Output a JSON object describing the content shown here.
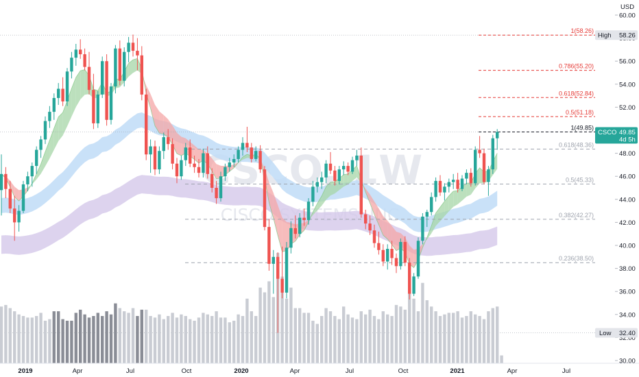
{
  "chart_data": {
    "type": "candlestick",
    "symbol": "CSCO",
    "interval": "1W",
    "watermark": {
      "symbol": "CSCO, 1W",
      "name": "CISCO SYSTEMS, INC"
    },
    "currency": "USD",
    "price_axis": {
      "ylim": [
        29.8,
        61.4
      ],
      "ticks": [
        30.0,
        32.0,
        34.0,
        36.0,
        38.0,
        40.0,
        42.0,
        44.0,
        46.0,
        48.0,
        50.0,
        52.0,
        54.0,
        56.0,
        58.0,
        60.0
      ]
    },
    "time_axis": {
      "labels": [
        "2019",
        "Apr",
        "Jul",
        "Oct",
        "2020",
        "Apr",
        "Jul",
        "Oct",
        "2021",
        "Apr",
        "Jul"
      ],
      "bold": [
        "2019",
        "2020",
        "2021"
      ]
    },
    "price_labels": {
      "last": {
        "symbol": "CSCO",
        "value": "49.85",
        "countdown": "4d 5h"
      },
      "high": {
        "label": "High",
        "value": "58.26"
      },
      "low": {
        "label": "Low",
        "value": "32.40"
      }
    },
    "fibonacci": [
      {
        "label": "1(58.26)",
        "value": 58.26,
        "color": "#e53935"
      },
      {
        "label": "0.786(55.20)",
        "value": 55.2,
        "color": "#e53935"
      },
      {
        "label": "0.618(52.84)",
        "value": 52.84,
        "color": "#e53935"
      },
      {
        "label": "0.5(51.18)",
        "value": 51.18,
        "color": "#e53935"
      },
      {
        "label": "1(49.85)",
        "value": 49.85,
        "color": "#131722"
      },
      {
        "label": "0.618(48.36)",
        "value": 48.36,
        "color": "#9ea3ad"
      },
      {
        "label": "0.5(45.33)",
        "value": 45.33,
        "color": "#9ea3ad"
      },
      {
        "label": "0.382(42.27)",
        "value": 42.27,
        "color": "#9ea3ad"
      },
      {
        "label": "0.236(38.50)",
        "value": 38.5,
        "color": "#9ea3ad"
      }
    ],
    "colors": {
      "up": "#26a69a",
      "down": "#ef5350",
      "vol_dark": "#8a8d96",
      "vol_light": "#c9ccd3",
      "band_blue": "#bfdcf7",
      "band_purple": "#d4c8ea"
    },
    "candles": [
      [
        44.8,
        47.9,
        42.6,
        46.2
      ],
      [
        46.2,
        46.8,
        44.1,
        44.9
      ],
      [
        44.9,
        45.6,
        42.8,
        43.2
      ],
      [
        43.2,
        44.3,
        40.4,
        42.0
      ],
      [
        42.0,
        43.5,
        41.2,
        43.0
      ],
      [
        43.0,
        45.6,
        42.8,
        45.3
      ],
      [
        45.3,
        46.4,
        44.7,
        46.0
      ],
      [
        46.0,
        47.2,
        45.1,
        46.9
      ],
      [
        46.9,
        48.6,
        46.2,
        48.3
      ],
      [
        48.3,
        49.5,
        47.6,
        49.2
      ],
      [
        49.2,
        51.2,
        48.8,
        50.8
      ],
      [
        50.8,
        52.1,
        50.2,
        51.6
      ],
      [
        51.6,
        53.2,
        50.9,
        52.8
      ],
      [
        52.8,
        54.1,
        52.2,
        53.6
      ],
      [
        53.6,
        54.6,
        52.1,
        52.5
      ],
      [
        52.5,
        55.4,
        52.1,
        55.1
      ],
      [
        55.1,
        56.8,
        54.5,
        56.3
      ],
      [
        56.3,
        57.5,
        55.6,
        57.0
      ],
      [
        57.0,
        57.9,
        56.2,
        56.6
      ],
      [
        56.6,
        57.1,
        55.2,
        55.5
      ],
      [
        55.5,
        56.8,
        53.1,
        53.5
      ],
      [
        53.5,
        54.9,
        50.1,
        50.6
      ],
      [
        50.6,
        53.4,
        50.2,
        53.1
      ],
      [
        53.1,
        56.4,
        52.8,
        56.0
      ],
      [
        56.0,
        56.6,
        50.4,
        50.9
      ],
      [
        50.9,
        54.1,
        50.5,
        53.8
      ],
      [
        53.8,
        57.4,
        53.2,
        57.1
      ],
      [
        57.1,
        57.8,
        53.9,
        54.3
      ],
      [
        54.3,
        57.2,
        53.8,
        56.8
      ],
      [
        56.8,
        58.1,
        55.9,
        57.6
      ],
      [
        57.6,
        58.3,
        56.4,
        56.9
      ],
      [
        56.9,
        58.0,
        55.2,
        56.5
      ],
      [
        56.5,
        57.3,
        52.6,
        53.1
      ],
      [
        53.1,
        53.6,
        47.4,
        47.9
      ],
      [
        47.9,
        49.2,
        46.3,
        48.6
      ],
      [
        48.6,
        49.1,
        46.1,
        46.6
      ],
      [
        46.6,
        48.6,
        46.2,
        48.2
      ],
      [
        48.2,
        49.8,
        47.5,
        49.4
      ],
      [
        49.4,
        50.1,
        48.3,
        48.8
      ],
      [
        48.8,
        49.3,
        46.6,
        47.1
      ],
      [
        47.1,
        47.6,
        45.4,
        46.0
      ],
      [
        46.0,
        47.8,
        45.7,
        47.4
      ],
      [
        47.4,
        48.9,
        46.9,
        48.5
      ],
      [
        48.5,
        49.2,
        46.8,
        47.1
      ],
      [
        47.1,
        47.8,
        46.3,
        46.8
      ],
      [
        46.8,
        47.5,
        45.9,
        46.3
      ],
      [
        46.3,
        48.4,
        45.9,
        48.0
      ],
      [
        48.0,
        48.6,
        45.8,
        46.2
      ],
      [
        46.2,
        46.7,
        44.6,
        45.0
      ],
      [
        45.0,
        45.6,
        43.6,
        44.1
      ],
      [
        44.1,
        46.4,
        43.8,
        46.0
      ],
      [
        46.0,
        47.1,
        45.6,
        46.8
      ],
      [
        46.8,
        47.6,
        46.4,
        47.2
      ],
      [
        47.2,
        47.9,
        46.8,
        47.5
      ],
      [
        47.5,
        48.6,
        47.2,
        48.3
      ],
      [
        48.3,
        49.4,
        47.8,
        48.9
      ],
      [
        48.9,
        50.3,
        48.1,
        48.5
      ],
      [
        48.5,
        48.9,
        47.2,
        47.5
      ],
      [
        47.5,
        48.6,
        47.3,
        48.2
      ],
      [
        48.2,
        48.7,
        46.3,
        46.6
      ],
      [
        46.6,
        46.9,
        41.3,
        41.6
      ],
      [
        41.6,
        42.3,
        37.8,
        38.4
      ],
      [
        38.4,
        39.6,
        35.8,
        39.0
      ],
      [
        39.0,
        39.4,
        32.4,
        37.1
      ],
      [
        37.1,
        39.9,
        35.4,
        35.9
      ],
      [
        35.9,
        40.3,
        35.4,
        39.8
      ],
      [
        39.8,
        42.1,
        39.3,
        41.5
      ],
      [
        41.5,
        42.6,
        40.6,
        41.0
      ],
      [
        41.0,
        42.8,
        40.7,
        42.4
      ],
      [
        42.4,
        43.2,
        41.7,
        42.2
      ],
      [
        42.2,
        44.1,
        41.8,
        43.8
      ],
      [
        43.8,
        45.6,
        43.4,
        45.1
      ],
      [
        45.1,
        45.9,
        44.6,
        45.5
      ],
      [
        45.5,
        46.4,
        44.9,
        45.9
      ],
      [
        45.9,
        47.4,
        45.4,
        47.1
      ],
      [
        47.1,
        48.1,
        46.2,
        46.5
      ],
      [
        46.5,
        46.9,
        45.2,
        45.6
      ],
      [
        45.6,
        46.9,
        45.3,
        46.6
      ],
      [
        46.6,
        47.3,
        46.1,
        46.9
      ],
      [
        46.9,
        47.2,
        46.1,
        46.4
      ],
      [
        46.4,
        47.7,
        46.2,
        47.4
      ],
      [
        47.4,
        48.3,
        46.9,
        47.8
      ],
      [
        47.8,
        48.5,
        42.4,
        42.7
      ],
      [
        42.7,
        43.1,
        41.4,
        41.9
      ],
      [
        41.9,
        42.6,
        40.9,
        41.3
      ],
      [
        41.3,
        41.8,
        39.8,
        40.2
      ],
      [
        40.2,
        41.2,
        39.2,
        39.6
      ],
      [
        39.6,
        40.1,
        38.2,
        38.6
      ],
      [
        38.6,
        40.1,
        37.9,
        39.7
      ],
      [
        39.7,
        40.4,
        38.3,
        38.9
      ],
      [
        38.9,
        39.3,
        37.6,
        38.2
      ],
      [
        38.2,
        40.6,
        37.9,
        40.3
      ],
      [
        40.3,
        40.8,
        38.2,
        38.5
      ],
      [
        38.5,
        38.9,
        35.3,
        35.8
      ],
      [
        35.8,
        37.6,
        35.6,
        37.3
      ],
      [
        37.3,
        40.7,
        37.1,
        40.4
      ],
      [
        40.4,
        42.8,
        40.1,
        42.5
      ],
      [
        42.5,
        43.1,
        41.6,
        42.9
      ],
      [
        42.9,
        44.6,
        42.6,
        44.2
      ],
      [
        44.2,
        45.9,
        43.8,
        45.6
      ],
      [
        45.6,
        46.1,
        44.3,
        44.6
      ],
      [
        44.6,
        45.4,
        43.9,
        45.1
      ],
      [
        45.1,
        45.8,
        44.6,
        45.5
      ],
      [
        45.5,
        46.2,
        44.9,
        45.7
      ],
      [
        45.7,
        46.3,
        44.6,
        44.9
      ],
      [
        44.9,
        46.1,
        44.7,
        45.8
      ],
      [
        45.8,
        46.6,
        45.3,
        46.3
      ],
      [
        46.3,
        46.7,
        45.1,
        45.4
      ],
      [
        45.4,
        48.6,
        45.2,
        48.3
      ],
      [
        48.3,
        49.5,
        47.6,
        48.0
      ],
      [
        48.0,
        48.4,
        45.3,
        45.5
      ],
      [
        45.5,
        46.9,
        44.3,
        46.6
      ],
      [
        46.6,
        49.6,
        46.2,
        49.3
      ],
      [
        49.3,
        50.1,
        48.3,
        49.85
      ]
    ],
    "volume": [
      36,
      37,
      35,
      33,
      31,
      30,
      29,
      29,
      30,
      32,
      27,
      28,
      33,
      33,
      28,
      27,
      27,
      32,
      34,
      31,
      29,
      30,
      32,
      30,
      33,
      31,
      38,
      35,
      33,
      32,
      35,
      30,
      34,
      34,
      30,
      29,
      31,
      28,
      30,
      32,
      29,
      31,
      30,
      28,
      27,
      29,
      32,
      31,
      30,
      33,
      29,
      29,
      26,
      27,
      31,
      30,
      41,
      33,
      30,
      48,
      45,
      52,
      42,
      70,
      55,
      41,
      48,
      35,
      35,
      32,
      32,
      27,
      25,
      30,
      35,
      33,
      30,
      28,
      36,
      31,
      29,
      28,
      33,
      31,
      34,
      30,
      28,
      33,
      31,
      30,
      37,
      36,
      34,
      48,
      41,
      33,
      51,
      40,
      36,
      33,
      30,
      31,
      32,
      32,
      33,
      29,
      30,
      33,
      31,
      30,
      28,
      33,
      35,
      36,
      5
    ],
    "volume_light": [
      0,
      1,
      2,
      3,
      4,
      5,
      6,
      7,
      8,
      9,
      10,
      11,
      27,
      28,
      29,
      30,
      33,
      34,
      35,
      36,
      37,
      38,
      39,
      40,
      41,
      42,
      43,
      44,
      45,
      46,
      47,
      48,
      49,
      50,
      51,
      52,
      53,
      54,
      55,
      56,
      57,
      58,
      59,
      60,
      61,
      62,
      63,
      64,
      65,
      66,
      67,
      68,
      69,
      70,
      71,
      72,
      73,
      74,
      75,
      76,
      77,
      78,
      79,
      80,
      81,
      82,
      83,
      84,
      85,
      86,
      87,
      88,
      89,
      90,
      91,
      92,
      93,
      94,
      95,
      96,
      97,
      98,
      99,
      100,
      101,
      102,
      103,
      104,
      105,
      106,
      107,
      108,
      109,
      110,
      111,
      112,
      113,
      114
    ]
  }
}
